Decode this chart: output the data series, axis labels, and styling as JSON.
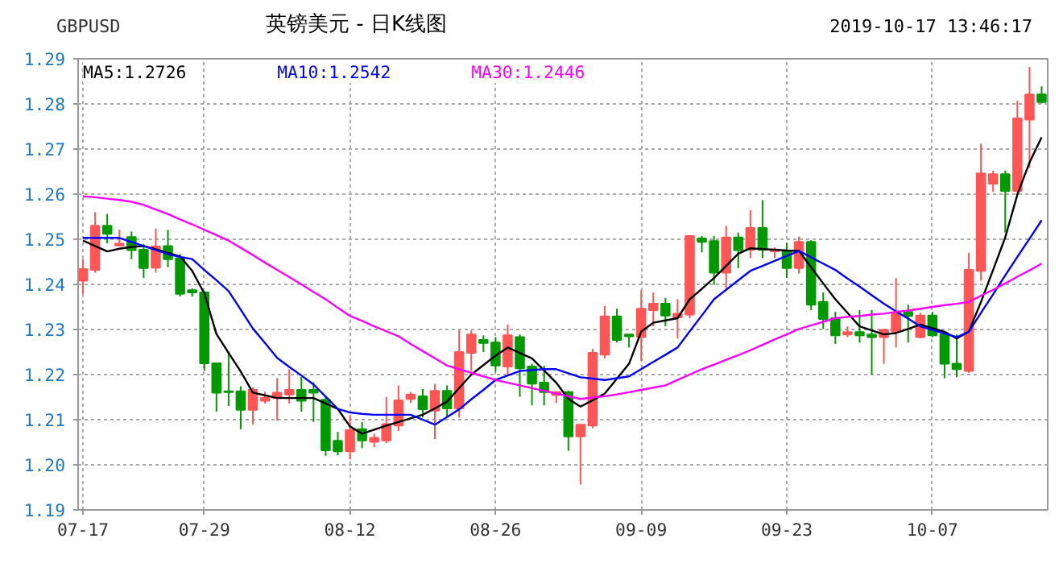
{
  "chart_data": {
    "type": "candlestick",
    "title": "英镑美元 - 日K线图",
    "subtitle": "GBPUSD",
    "annotations": [
      "2019-10-17 13:46:17"
    ],
    "categories": [
      "07-17",
      null,
      null,
      null,
      null,
      null,
      null,
      null,
      null,
      null,
      "07-29",
      null,
      null,
      null,
      null,
      null,
      null,
      null,
      null,
      null,
      null,
      null,
      "08-12",
      null,
      null,
      null,
      null,
      null,
      null,
      null,
      null,
      null,
      null,
      null,
      "08-26",
      null,
      null,
      null,
      null,
      null,
      null,
      null,
      null,
      null,
      null,
      null,
      "09-09",
      null,
      null,
      null,
      null,
      null,
      null,
      null,
      null,
      null,
      null,
      null,
      "09-23",
      null,
      null,
      null,
      null,
      null,
      null,
      null,
      null,
      null,
      null,
      null,
      "10-07",
      null,
      null,
      null,
      null,
      null,
      null,
      null,
      null,
      null
    ],
    "ohlc": [
      [
        1.2408,
        1.2456,
        1.2379,
        1.2434
      ],
      [
        1.2432,
        1.256,
        1.2426,
        1.253
      ],
      [
        1.253,
        1.2556,
        1.2491,
        1.2512
      ],
      [
        1.2486,
        1.2521,
        1.2485,
        1.249
      ],
      [
        1.2505,
        1.2517,
        1.2456,
        1.2476
      ],
      [
        1.2477,
        1.2489,
        1.2414,
        1.2436
      ],
      [
        1.2437,
        1.2524,
        1.2426,
        1.2484
      ],
      [
        1.2485,
        1.2521,
        1.2438,
        1.2456
      ],
      [
        1.2458,
        1.2467,
        1.2373,
        1.2379
      ],
      [
        1.2387,
        1.2391,
        1.2373,
        1.2382
      ],
      [
        1.2382,
        1.2385,
        1.2209,
        1.2225
      ],
      [
        1.2225,
        1.2225,
        1.2118,
        1.216
      ],
      [
        1.2163,
        1.2251,
        1.213,
        1.2161
      ],
      [
        1.2163,
        1.2174,
        1.2079,
        1.2122
      ],
      [
        1.2122,
        1.2172,
        1.2089,
        1.2166
      ],
      [
        1.2142,
        1.2162,
        1.2136,
        1.2148
      ],
      [
        1.2148,
        1.2192,
        1.2098,
        1.216
      ],
      [
        1.2156,
        1.2212,
        1.2136,
        1.2166
      ],
      [
        1.2166,
        1.2195,
        1.2118,
        1.2142
      ],
      [
        1.2166,
        1.2183,
        1.2095,
        1.216
      ],
      [
        1.2144,
        1.215,
        1.202,
        1.2032
      ],
      [
        1.2053,
        1.2073,
        1.2021,
        1.203
      ],
      [
        1.203,
        1.211,
        1.2012,
        1.2077
      ],
      [
        1.2079,
        1.2095,
        1.2037,
        1.2054
      ],
      [
        1.2051,
        1.2069,
        1.2039,
        1.206
      ],
      [
        1.2054,
        1.215,
        1.2048,
        1.209
      ],
      [
        1.2087,
        1.2176,
        1.2075,
        1.2143
      ],
      [
        1.2146,
        1.2161,
        1.2137,
        1.2156
      ],
      [
        1.2152,
        1.2168,
        1.2105,
        1.2123
      ],
      [
        1.212,
        1.2179,
        1.2057,
        1.2164
      ],
      [
        1.2164,
        1.2176,
        1.2107,
        1.2125
      ],
      [
        1.2125,
        1.2299,
        1.2105,
        1.225
      ],
      [
        1.2248,
        1.2298,
        1.2208,
        1.2289
      ],
      [
        1.2277,
        1.2287,
        1.225,
        1.227
      ],
      [
        1.2271,
        1.2283,
        1.2206,
        1.222
      ],
      [
        1.2218,
        1.2311,
        1.22,
        1.2287
      ],
      [
        1.2283,
        1.2289,
        1.2151,
        1.2214
      ],
      [
        1.2218,
        1.2224,
        1.2132,
        1.218
      ],
      [
        1.2182,
        1.222,
        1.2132,
        1.2161
      ],
      [
        1.2155,
        1.2163,
        1.2137,
        1.2161
      ],
      [
        1.2161,
        1.2164,
        1.2031,
        1.2063
      ],
      [
        1.2063,
        1.2089,
        1.1956,
        1.2089
      ],
      [
        1.2087,
        1.2257,
        1.2081,
        1.2248
      ],
      [
        1.2244,
        1.2352,
        1.2236,
        1.2329
      ],
      [
        1.2329,
        1.2346,
        1.2271,
        1.2277
      ],
      [
        1.2289,
        1.2289,
        1.226,
        1.2285
      ],
      [
        1.2283,
        1.2387,
        1.223,
        1.2346
      ],
      [
        1.2343,
        1.2382,
        1.2307,
        1.2357
      ],
      [
        1.2357,
        1.237,
        1.2307,
        1.2331
      ],
      [
        1.2327,
        1.2367,
        1.228,
        1.2335
      ],
      [
        1.2333,
        1.2507,
        1.2325,
        1.2507
      ],
      [
        1.2502,
        1.2507,
        1.2471,
        1.2494
      ],
      [
        1.2496,
        1.2507,
        1.2399,
        1.2426
      ],
      [
        1.2426,
        1.253,
        1.239,
        1.2504
      ],
      [
        1.2504,
        1.2515,
        1.2436,
        1.2476
      ],
      [
        1.2477,
        1.2565,
        1.2458,
        1.2525
      ],
      [
        1.2525,
        1.2587,
        1.2458,
        1.2477
      ],
      [
        1.2473,
        1.2482,
        1.2458,
        1.2477
      ],
      [
        1.2474,
        1.2492,
        1.2414,
        1.2436
      ],
      [
        1.2436,
        1.2506,
        1.2424,
        1.2494
      ],
      [
        1.2494,
        1.2498,
        1.2343,
        1.2355
      ],
      [
        1.2361,
        1.2382,
        1.2301,
        1.2323
      ],
      [
        1.2325,
        1.2339,
        1.2268,
        1.2287
      ],
      [
        1.2289,
        1.2307,
        1.2283,
        1.2294
      ],
      [
        1.2294,
        1.2343,
        1.2271,
        1.2287
      ],
      [
        1.2289,
        1.2343,
        1.22,
        1.2283
      ],
      [
        1.2283,
        1.2301,
        1.2224,
        1.2299
      ],
      [
        1.2295,
        1.2414,
        1.226,
        1.2337
      ],
      [
        1.2339,
        1.2355,
        1.2271,
        1.233
      ],
      [
        1.2283,
        1.2337,
        1.228,
        1.2331
      ],
      [
        1.2331,
        1.2339,
        1.2283,
        1.2287
      ],
      [
        1.2289,
        1.2295,
        1.2192,
        1.2224
      ],
      [
        1.2224,
        1.2289,
        1.2194,
        1.2212
      ],
      [
        1.2208,
        1.247,
        1.2204,
        1.2432
      ],
      [
        1.243,
        1.2712,
        1.2408,
        1.2646
      ],
      [
        1.2623,
        1.2652,
        1.2605,
        1.2644
      ],
      [
        1.2644,
        1.2652,
        1.2515,
        1.2607
      ],
      [
        1.2607,
        1.2807,
        1.2599,
        1.2768
      ],
      [
        1.2765,
        1.2882,
        1.2658,
        1.2821
      ],
      [
        1.2821,
        1.2839,
        1.2801,
        1.2804
      ]
    ],
    "colors": [
      "#ff5555",
      "#ff5555",
      "#009900",
      "#ff5555",
      "#009900",
      "#009900",
      "#ff5555",
      "#009900",
      "#009900",
      "#009900",
      "#009900",
      "#009900",
      "#009900",
      "#009900",
      "#ff5555",
      "#ff5555",
      "#ff5555",
      "#ff5555",
      "#009900",
      "#009900",
      "#009900",
      "#009900",
      "#ff5555",
      "#009900",
      "#ff5555",
      "#ff5555",
      "#ff5555",
      "#ff5555",
      "#009900",
      "#ff5555",
      "#009900",
      "#ff5555",
      "#ff5555",
      "#009900",
      "#009900",
      "#ff5555",
      "#009900",
      "#009900",
      "#009900",
      "#ff5555",
      "#009900",
      "#ff5555",
      "#ff5555",
      "#ff5555",
      "#009900",
      "#009900",
      "#ff5555",
      "#ff5555",
      "#009900",
      "#ff5555",
      "#ff5555",
      "#009900",
      "#009900",
      "#ff5555",
      "#009900",
      "#ff5555",
      "#009900",
      "#ff5555",
      "#009900",
      "#ff5555",
      "#009900",
      "#009900",
      "#009900",
      "#ff5555",
      "#009900",
      "#009900",
      "#ff5555",
      "#ff5555",
      "#009900",
      "#ff5555",
      "#009900",
      "#009900",
      "#009900",
      "#ff5555",
      "#ff5555",
      "#ff5555",
      "#009900",
      "#ff5555",
      "#ff5555",
      "#009900"
    ],
    "series": [
      {
        "name": "MA5:1.2726",
        "type": "line",
        "color": "#000000",
        "values": [
          1.2497,
          1.2485,
          1.2473,
          1.2479,
          1.2483,
          1.2485,
          1.2478,
          1.247,
          1.2462,
          1.243,
          1.238,
          1.229,
          1.2248,
          1.2207,
          1.216,
          1.2154,
          1.2148,
          1.2148,
          1.2148,
          1.2148,
          1.2136,
          1.2124,
          1.2085,
          1.2069,
          1.2078,
          1.2087,
          1.2095,
          1.2103,
          1.2111,
          1.2125,
          1.214,
          1.217,
          1.22,
          1.2221,
          1.2242,
          1.226,
          1.2248,
          1.2236,
          1.2209,
          1.2182,
          1.2146,
          1.2129,
          1.2143,
          1.2158,
          1.2191,
          1.2224,
          1.2295,
          1.2315,
          1.232,
          1.2325,
          1.2367,
          1.239,
          1.2414,
          1.2441,
          1.2468,
          1.248,
          1.2478,
          1.2477,
          1.2475,
          1.2474,
          1.2438,
          1.2402,
          1.2367,
          1.2337,
          1.2307,
          1.2298,
          1.2289,
          1.2292,
          1.2301,
          1.2311,
          1.2303,
          1.2295,
          1.228,
          1.2295,
          1.2361,
          1.2432,
          1.2504,
          1.2599,
          1.267,
          1.2726
        ]
      },
      {
        "name": "MA10:1.2542",
        "type": "line",
        "color": "#0000ff",
        "values": [
          1.2503,
          1.2503,
          1.2503,
          1.2503,
          1.2494,
          1.2485,
          1.2476,
          1.2467,
          1.2461,
          1.2456,
          1.2432,
          1.2409,
          1.2385,
          1.2344,
          1.2302,
          1.227,
          1.2237,
          1.2217,
          1.2198,
          1.2178,
          1.2151,
          1.2124,
          1.2116,
          1.2113,
          1.2111,
          1.2111,
          1.2111,
          1.2111,
          1.21,
          1.2089,
          1.2106,
          1.2123,
          1.2145,
          1.2166,
          1.2188,
          1.2198,
          1.2208,
          1.221,
          1.2212,
          1.2212,
          1.2203,
          1.2194,
          1.2191,
          1.2188,
          1.2192,
          1.2196,
          1.2212,
          1.2228,
          1.2244,
          1.226,
          1.2296,
          1.2331,
          1.2367,
          1.2388,
          1.2409,
          1.243,
          1.2441,
          1.2452,
          1.2463,
          1.2474,
          1.246,
          1.2446,
          1.2432,
          1.2413,
          1.2395,
          1.2376,
          1.2357,
          1.234,
          1.2324,
          1.2307,
          1.2299,
          1.2291,
          1.2283,
          1.2295,
          1.2337,
          1.2378,
          1.242,
          1.2461,
          1.2501,
          1.2542
        ]
      },
      {
        "name": "MA30:1.2446",
        "type": "line",
        "color": "#ff00ff",
        "values": [
          1.2595,
          1.2593,
          1.259,
          1.2587,
          1.2583,
          1.2576,
          1.2566,
          1.2556,
          1.2544,
          1.2533,
          1.2521,
          1.2509,
          1.2497,
          1.2481,
          1.2465,
          1.2448,
          1.2432,
          1.2416,
          1.24,
          1.2383,
          1.2367,
          1.2348,
          1.233,
          1.2319,
          1.2307,
          1.2296,
          1.2285,
          1.2268,
          1.2252,
          1.2236,
          1.222,
          1.2212,
          1.2204,
          1.2196,
          1.2188,
          1.2182,
          1.2176,
          1.217,
          1.2164,
          1.2158,
          1.2152,
          1.2146,
          1.2149,
          1.2152,
          1.2156,
          1.2161,
          1.2166,
          1.2171,
          1.2176,
          1.2188,
          1.22,
          1.2212,
          1.2222,
          1.2233,
          1.2243,
          1.2254,
          1.2266,
          1.2278,
          1.2289,
          1.2301,
          1.2309,
          1.2317,
          1.2325,
          1.2328,
          1.233,
          1.2333,
          1.2335,
          1.2339,
          1.2342,
          1.2346,
          1.235,
          1.2354,
          1.2357,
          1.2361,
          1.2375,
          1.2388,
          1.2402,
          1.2417,
          1.2431,
          1.2446
        ]
      }
    ],
    "ylim": [
      1.19,
      1.29
    ],
    "yticks": [
      1.19,
      {
        "value": 1.2,
        "label": "1.20"
      },
      1.21,
      1.22,
      1.23,
      1.24,
      1.25,
      1.26,
      1.27,
      1.28,
      1.29
    ],
    "grid": true,
    "legend": "top left",
    "line_style": "solid",
    "marker": "none"
  }
}
